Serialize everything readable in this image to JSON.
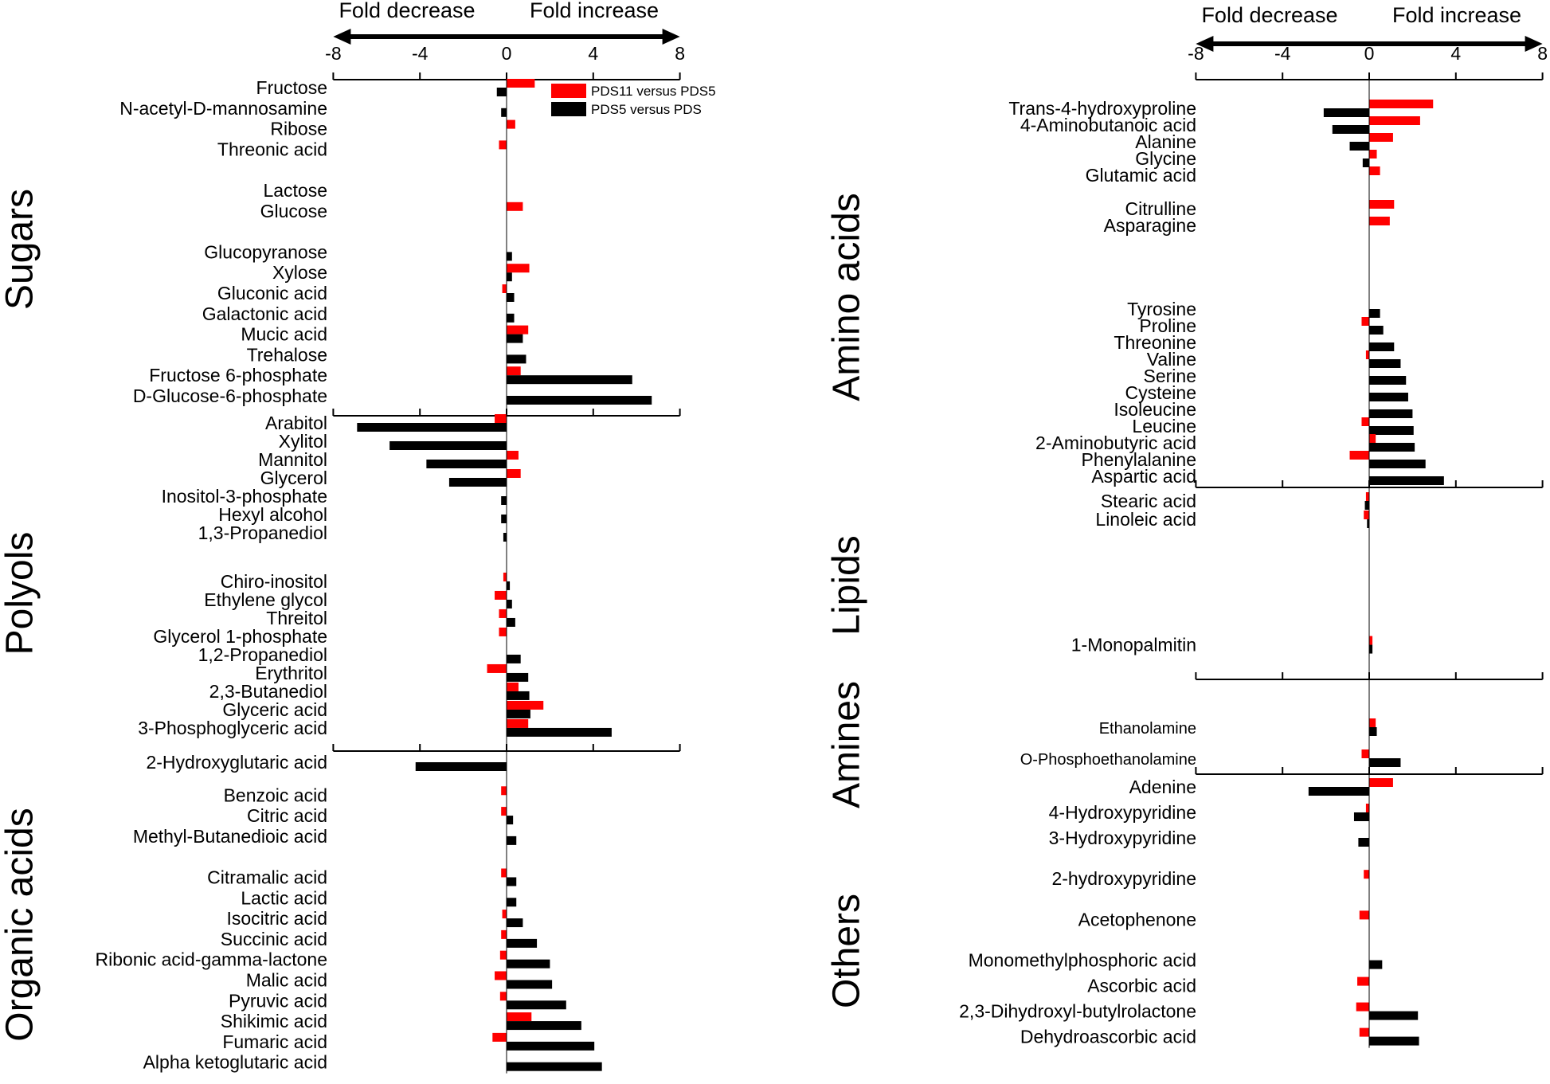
{
  "chart_data": {
    "type": "bar",
    "orientation": "horizontal",
    "title": "",
    "xlabel": "",
    "axis_ticks": [
      "-8",
      "-4",
      "0",
      "4",
      "8"
    ],
    "xlim": [
      -8,
      8
    ],
    "fold_decrease_label": "Fold decrease",
    "fold_increase_label": "Fold increase",
    "legend": [
      {
        "name": "PDS11 versus  PDS5",
        "color": "#ff0000"
      },
      {
        "name": "PDS5   versus  PDS",
        "color": "#000000"
      }
    ],
    "colors": {
      "red": "#ff0000",
      "black": "#000000"
    },
    "panels": [
      {
        "name": "left",
        "groups": [
          {
            "label": "Sugars",
            "metabolites": [
              {
                "name": "Fructose",
                "red": 1.3,
                "black": -0.45
              },
              {
                "name": "N-acetyl-D-mannosamine",
                "red": 0.0,
                "black": -0.25
              },
              {
                "name": "Ribose",
                "red": 0.4,
                "black": 0.0
              },
              {
                "name": "Threonic acid",
                "red": -0.35,
                "black": 0.0
              },
              {
                "name": "Lactose",
                "red": 0.0,
                "black": 0.0
              },
              {
                "name": "Glucose",
                "red": 0.75,
                "black": 0.0
              },
              {
                "name": "Glucopyranose",
                "red": 0.0,
                "black": 0.25
              },
              {
                "name": "Xylose",
                "red": 1.05,
                "black": 0.25
              },
              {
                "name": "Gluconic acid",
                "red": -0.2,
                "black": 0.35
              },
              {
                "name": "Galactonic acid",
                "red": 0.0,
                "black": 0.35
              },
              {
                "name": "Mucic acid",
                "red": 1.0,
                "black": 0.75
              },
              {
                "name": "Trehalose",
                "red": 0.0,
                "black": 0.9
              },
              {
                "name": "Fructose 6-phosphate",
                "red": 0.65,
                "black": 5.8
              },
              {
                "name": "D-Glucose-6-phosphate",
                "red": 0.0,
                "black": 6.7
              }
            ]
          },
          {
            "label": "Polyols",
            "metabolites": [
              {
                "name": "Arabitol",
                "red": -0.55,
                "black": -6.9
              },
              {
                "name": "Xylitol",
                "red": 0.0,
                "black": -5.4
              },
              {
                "name": "Mannitol",
                "red": 0.55,
                "black": -3.7
              },
              {
                "name": "Glycerol",
                "red": 0.65,
                "black": -2.65
              },
              {
                "name": "Inositol-3-phosphate",
                "red": 0.0,
                "black": -0.25
              },
              {
                "name": "Hexyl alcohol",
                "red": 0.0,
                "black": -0.25
              },
              {
                "name": "1,3-Propanediol",
                "red": 0.0,
                "black": -0.15
              },
              {
                "name": "Chiro-inositol",
                "red": -0.15,
                "black": 0.15
              },
              {
                "name": "Ethylene glycol",
                "red": -0.55,
                "black": 0.25
              },
              {
                "name": "Threitol",
                "red": -0.35,
                "black": 0.4
              },
              {
                "name": "Glycerol 1-phosphate",
                "red": -0.35,
                "black": 0.0
              },
              {
                "name": "1,2-Propanediol",
                "red": 0.0,
                "black": 0.65
              },
              {
                "name": "Erythritol",
                "red": -0.9,
                "black": 1.0
              },
              {
                "name": "2,3-Butanediol",
                "red": 0.55,
                "black": 1.05
              },
              {
                "name": "Glyceric acid",
                "red": 1.7,
                "black": 1.1
              },
              {
                "name": "3-Phosphoglyceric acid",
                "red": 1.0,
                "black": 4.85
              }
            ]
          },
          {
            "label": "Organic acids",
            "metabolites": [
              {
                "name": "2-Hydroxyglutaric acid",
                "red": 0.0,
                "black": -4.2
              },
              {
                "name": "Benzoic acid",
                "red": -0.25,
                "black": 0.0
              },
              {
                "name": "Citric acid",
                "red": -0.25,
                "black": 0.3
              },
              {
                "name": "Methyl-Butanedioic acid",
                "red": 0.0,
                "black": 0.45
              },
              {
                "name": "Citramalic acid",
                "red": -0.25,
                "black": 0.45
              },
              {
                "name": "Lactic acid",
                "red": 0.0,
                "black": 0.45
              },
              {
                "name": "Isocitric acid",
                "red": -0.2,
                "black": 0.75
              },
              {
                "name": "Succinic acid",
                "red": -0.25,
                "black": 1.4
              },
              {
                "name": "Ribonic acid-gamma-lactone",
                "red": -0.3,
                "black": 2.0
              },
              {
                "name": "Malic acid",
                "red": -0.55,
                "black": 2.1
              },
              {
                "name": "Pyruvic acid",
                "red": -0.3,
                "black": 2.75
              },
              {
                "name": "Shikimic acid",
                "red": 1.15,
                "black": 3.45
              },
              {
                "name": "Fumaric acid",
                "red": -0.65,
                "black": 4.05
              },
              {
                "name": "Alpha ketoglutaric acid",
                "red": 0.0,
                "black": 4.4
              }
            ]
          }
        ]
      },
      {
        "name": "right",
        "groups": [
          {
            "label": "Amino acids",
            "metabolites": [
              {
                "name": "Trans-4-hydroxyproline",
                "red": 2.95,
                "black": -2.1
              },
              {
                "name": "4-Aminobutanoic acid",
                "red": 2.35,
                "black": -1.7
              },
              {
                "name": "Alanine",
                "red": 1.1,
                "black": -0.9
              },
              {
                "name": "Glycine",
                "red": 0.35,
                "black": -0.3
              },
              {
                "name": "Glutamic acid",
                "red": 0.5,
                "black": 0.0
              },
              {
                "name": "Citrulline",
                "red": 1.15,
                "black": 0.0
              },
              {
                "name": "Asparagine",
                "red": 0.95,
                "black": 0.0
              },
              {
                "name": "Tyrosine",
                "red": 0.0,
                "black": 0.5
              },
              {
                "name": "Proline",
                "red": -0.35,
                "black": 0.65
              },
              {
                "name": "Threonine",
                "red": 0.0,
                "black": 1.15
              },
              {
                "name": "Valine",
                "red": -0.15,
                "black": 1.45
              },
              {
                "name": "Serine",
                "red": 0.0,
                "black": 1.7
              },
              {
                "name": "Cysteine",
                "red": 0.0,
                "black": 1.8
              },
              {
                "name": "Isoleucine",
                "red": 0.0,
                "black": 2.0
              },
              {
                "name": "Leucine",
                "red": -0.35,
                "black": 2.05
              },
              {
                "name": "2-Aminobutyric acid",
                "red": 0.3,
                "black": 2.1
              },
              {
                "name": "Phenylalanine",
                "red": -0.9,
                "black": 2.6
              },
              {
                "name": "Aspartic acid",
                "red": 0.0,
                "black": 3.45
              }
            ]
          },
          {
            "label": "Lipids",
            "metabolites": [
              {
                "name": "Stearic acid",
                "red": -0.15,
                "black": -0.2
              },
              {
                "name": "Linoleic acid",
                "red": -0.25,
                "black": -0.1
              },
              {
                "name": "1-Monopalmitin",
                "red": 0.15,
                "black": 0.15
              }
            ]
          },
          {
            "label": "Amines",
            "metabolites": [
              {
                "name": "Ethanolamine",
                "red": 0.3,
                "black": 0.35
              },
              {
                "name": "O-Phosphoethanolamine",
                "red": -0.35,
                "black": 1.45
              }
            ]
          },
          {
            "label": "Others",
            "metabolites": [
              {
                "name": "Adenine",
                "red": 1.1,
                "black": -2.8
              },
              {
                "name": "4-Hydroxypyridine",
                "red": -0.15,
                "black": -0.7
              },
              {
                "name": "3-Hydroxypyridine",
                "red": 0.0,
                "black": -0.5
              },
              {
                "name": "2-hydroxypyridine",
                "red": -0.25,
                "black": 0.0
              },
              {
                "name": "Acetophenone",
                "red": -0.45,
                "black": 0.0
              },
              {
                "name": "Monomethylphosphoric acid",
                "red": 0.0,
                "black": 0.6
              },
              {
                "name": "Ascorbic acid",
                "red": -0.55,
                "black": 0.0
              },
              {
                "name": "2,3-Dihydroxyl-butylrolactone",
                "red": -0.6,
                "black": 2.25
              },
              {
                "name": "Dehydroascorbic acid",
                "red": -0.45,
                "black": 2.3
              }
            ]
          }
        ]
      }
    ]
  }
}
